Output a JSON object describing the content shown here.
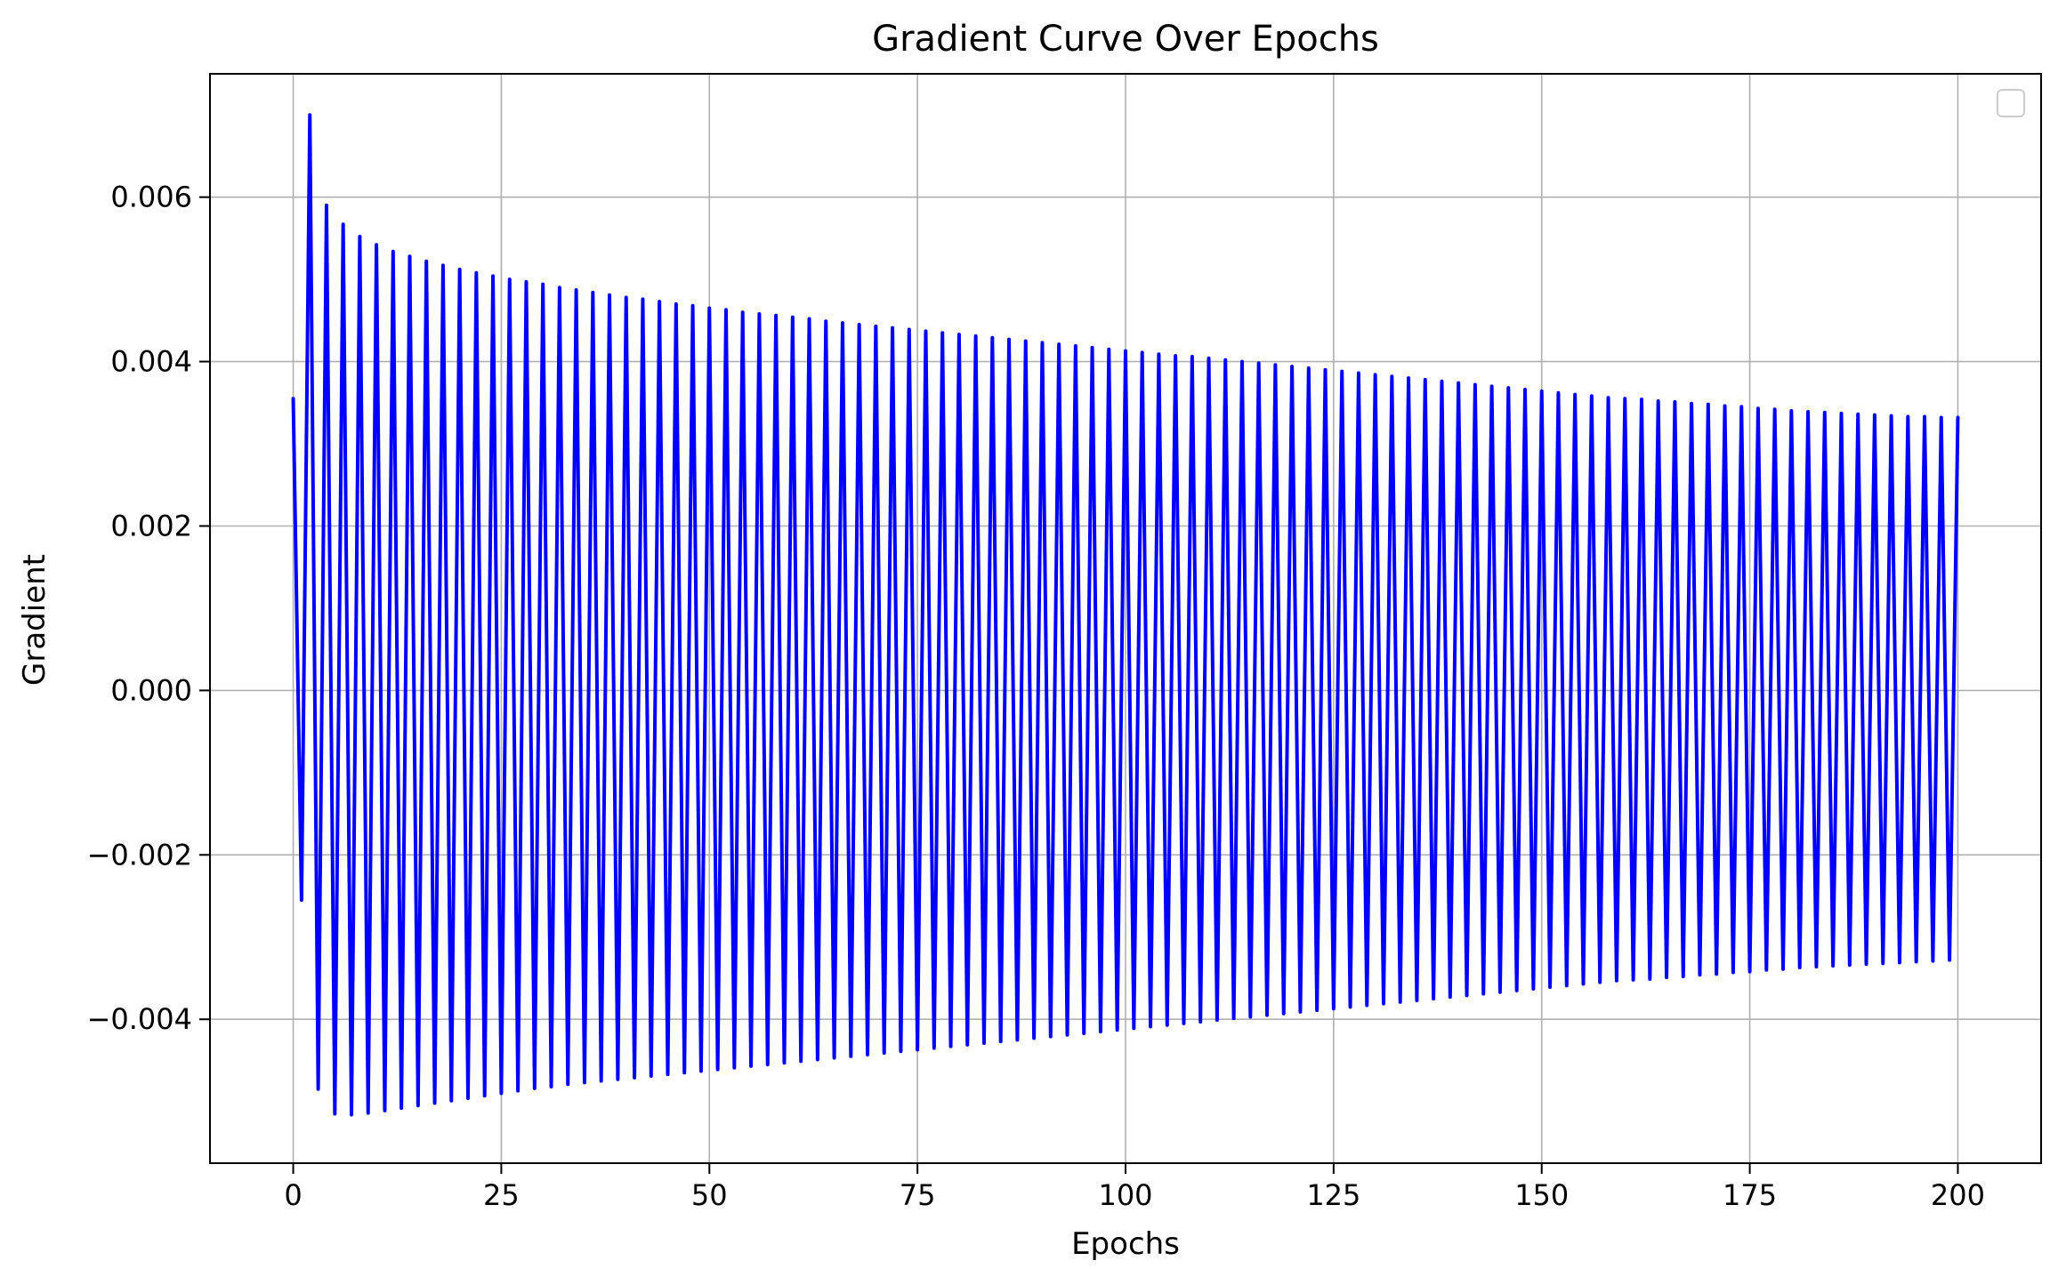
{
  "chart_data": {
    "type": "line",
    "title": "Gradient Curve Over Epochs",
    "xlabel": "Epochs",
    "ylabel": "Gradient",
    "xlim": [
      -10,
      210
    ],
    "ylim": [
      -0.00575,
      0.0075
    ],
    "x_ticks": [
      0,
      25,
      50,
      75,
      100,
      125,
      150,
      175,
      200
    ],
    "x_tick_labels": [
      "0",
      "25",
      "50",
      "75",
      "100",
      "125",
      "150",
      "175",
      "200"
    ],
    "y_ticks": [
      -0.004,
      -0.002,
      0.0,
      0.002,
      0.004,
      0.006
    ],
    "y_tick_labels": [
      "−0.004",
      "−0.002",
      "0.000",
      "0.002",
      "0.004",
      "0.006"
    ],
    "grid": true,
    "legend": {
      "placement": "top-right",
      "entries": []
    },
    "series": [
      {
        "color": "#0000ff",
        "x_start": 0,
        "x_end": 200,
        "x_step": 1,
        "pattern": "alternating sign: positive at even epochs, negative at odd epochs",
        "values": [
          0.00355,
          -0.00255,
          0.007,
          -0.00485,
          0.0059,
          -0.00515,
          0.00567,
          -0.00516,
          0.00552,
          -0.00514,
          0.00542,
          -0.00511,
          0.00534,
          -0.00508,
          0.00528,
          -0.00505,
          0.00522,
          -0.00502,
          0.00517,
          -0.00499,
          0.00512,
          -0.00496,
          0.00508,
          -0.00493,
          0.00504,
          -0.0049,
          0.005,
          -0.00487,
          0.00497,
          -0.00484,
          0.00494,
          -0.00482,
          0.0049,
          -0.00479,
          0.00487,
          -0.00477,
          0.00484,
          -0.00475,
          0.00481,
          -0.00473,
          0.00478,
          -0.00471,
          0.00476,
          -0.00469,
          0.00473,
          -0.00467,
          0.0047,
          -0.00465,
          0.00468,
          -0.00463,
          0.00465,
          -0.00461,
          0.00463,
          -0.00459,
          0.0046,
          -0.00457,
          0.00458,
          -0.00455,
          0.00456,
          -0.00453,
          0.00454,
          -0.00451,
          0.00452,
          -0.00449,
          0.00449,
          -0.00447,
          0.00447,
          -0.00445,
          0.00445,
          -0.00443,
          0.00443,
          -0.00441,
          0.00441,
          -0.00439,
          0.00439,
          -0.00437,
          0.00437,
          -0.00435,
          0.00435,
          -0.00433,
          0.00433,
          -0.00431,
          0.00431,
          -0.00429,
          0.00429,
          -0.00427,
          0.00427,
          -0.00425,
          0.00425,
          -0.00423,
          0.00423,
          -0.00421,
          0.00421,
          -0.00419,
          0.00419,
          -0.00417,
          0.00417,
          -0.00415,
          0.00415,
          -0.00413,
          0.00413,
          -0.00411,
          0.00411,
          -0.00409,
          0.00409,
          -0.00407,
          0.00407,
          -0.00405,
          0.00406,
          -0.00403,
          0.00404,
          -0.00401,
          0.00402,
          -0.00399,
          0.004,
          -0.00397,
          0.00398,
          -0.00395,
          0.00396,
          -0.00393,
          0.00394,
          -0.00391,
          0.00392,
          -0.00389,
          0.0039,
          -0.00387,
          0.00388,
          -0.00385,
          0.00386,
          -0.00383,
          0.00384,
          -0.00381,
          0.00382,
          -0.00379,
          0.0038,
          -0.00377,
          0.00378,
          -0.00375,
          0.00376,
          -0.00373,
          0.00374,
          -0.00371,
          0.00372,
          -0.00369,
          0.0037,
          -0.00367,
          0.00368,
          -0.00365,
          0.00366,
          -0.00363,
          0.00364,
          -0.00361,
          0.00362,
          -0.00359,
          0.0036,
          -0.00357,
          0.00358,
          -0.00355,
          0.00356,
          -0.00353,
          0.00355,
          -0.00352,
          0.00354,
          -0.00351,
          0.00352,
          -0.00349,
          0.00351,
          -0.00348,
          0.00349,
          -0.00346,
          0.00348,
          -0.00345,
          0.00346,
          -0.00343,
          0.00345,
          -0.00342,
          0.00343,
          -0.0034,
          0.00342,
          -0.00339,
          0.0034,
          -0.00337,
          0.00339,
          -0.00336,
          0.00338,
          -0.00335,
          0.00337,
          -0.00334,
          0.00336,
          -0.00333,
          0.00335,
          -0.00332,
          0.00334,
          -0.00331,
          0.00333,
          -0.0033,
          0.00333,
          -0.00329,
          0.00332,
          -0.00328,
          0.00332
        ]
      }
    ]
  }
}
